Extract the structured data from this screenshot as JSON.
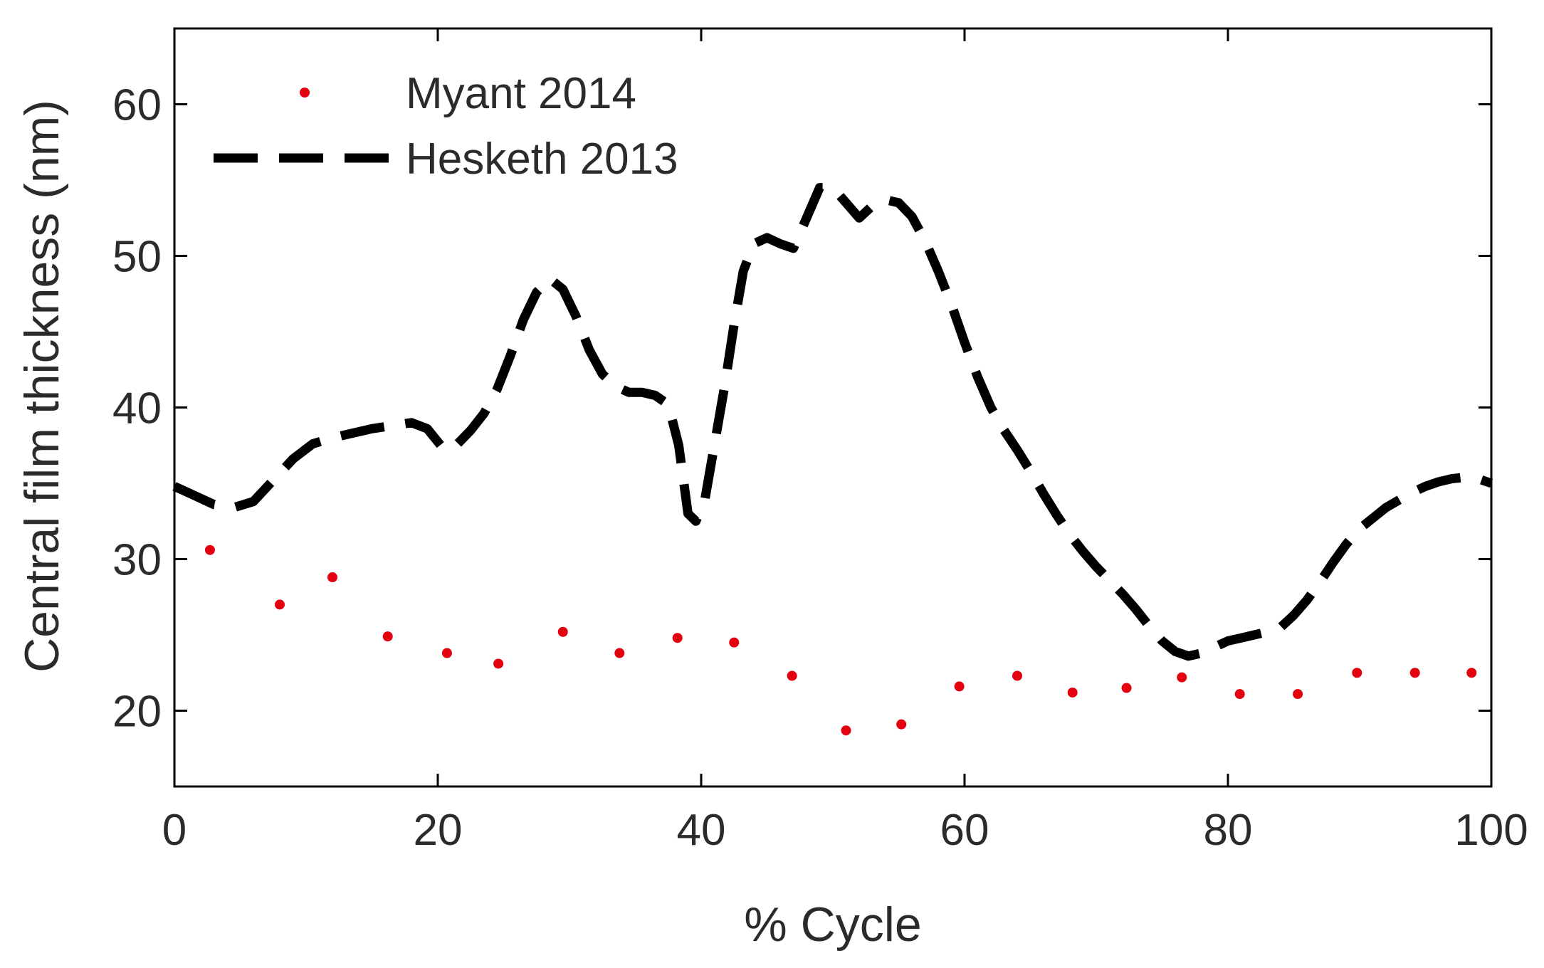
{
  "chart_data": {
    "type": "line",
    "title": "",
    "xlabel": "% Cycle",
    "ylabel": "Central film thickness (nm)",
    "xlim": [
      0,
      100
    ],
    "ylim": [
      15,
      65
    ],
    "xticks": [
      0,
      20,
      40,
      60,
      80,
      100
    ],
    "yticks": [
      20,
      30,
      40,
      50,
      60
    ],
    "xtick_labels": [
      "0",
      "20",
      "40",
      "60",
      "80",
      "100"
    ],
    "ytick_labels": [
      "20",
      "30",
      "40",
      "50",
      "60"
    ],
    "grid": false,
    "legend_position": "top-left",
    "series": [
      {
        "name": "Myant 2014",
        "style": "dots",
        "color": "#e3000f",
        "x": [
          2.7,
          8,
          12,
          16.2,
          20.7,
          24.6,
          29.5,
          33.8,
          38.2,
          42.5,
          46.9,
          51,
          55.2,
          59.6,
          64,
          68.2,
          72.3,
          76.5,
          80.9,
          85.3,
          89.8,
          94.2,
          98.5
        ],
        "y": [
          30.6,
          27.0,
          28.8,
          24.9,
          23.8,
          23.1,
          25.2,
          23.8,
          24.8,
          24.5,
          22.3,
          18.7,
          19.1,
          21.6,
          22.3,
          21.2,
          21.5,
          22.2,
          21.1,
          21.1,
          22.5,
          22.5,
          22.5
        ]
      },
      {
        "name": "Hesketh 2013",
        "style": "dashed",
        "color": "#000000",
        "x": [
          0,
          1.5,
          3,
          4.5,
          6,
          7.5,
          9,
          10.5,
          12,
          13.5,
          15,
          16.5,
          18,
          19.2,
          20.5,
          21.5,
          22.5,
          23.5,
          24.5,
          25.5,
          26.5,
          27.5,
          28.5,
          29.5,
          30.5,
          31.5,
          32.5,
          33.5,
          34.5,
          35.5,
          36.5,
          37.5,
          38.3,
          39,
          39.6,
          40.3,
          41,
          41.8,
          42.5,
          43.2,
          44,
          45,
          46,
          47,
          48,
          49,
          50,
          51,
          52,
          53,
          54,
          55,
          56,
          57,
          58,
          59,
          60,
          61,
          62,
          63,
          64,
          65,
          66,
          67,
          68,
          69,
          70,
          71,
          72,
          73,
          74,
          75,
          76,
          77,
          78,
          79,
          80,
          81,
          82,
          83,
          84,
          85,
          86,
          87,
          88,
          89,
          90,
          91,
          92,
          93,
          94,
          95,
          96,
          97,
          98,
          99,
          100
        ],
        "y": [
          34.8,
          34.2,
          33.6,
          33.4,
          33.8,
          35.2,
          36.6,
          37.6,
          38.0,
          38.3,
          38.6,
          38.8,
          39.0,
          38.6,
          37.2,
          37.6,
          38.5,
          39.6,
          41.2,
          43.4,
          45.8,
          47.6,
          48.5,
          47.8,
          46.0,
          43.8,
          42.2,
          41.4,
          41.0,
          41.0,
          40.8,
          40.2,
          37.5,
          33.0,
          32.5,
          34.0,
          37.5,
          41.5,
          45.5,
          49.0,
          50.8,
          51.2,
          50.8,
          50.5,
          52.5,
          54.5,
          54.5,
          53.5,
          52.5,
          53.3,
          53.7,
          53.5,
          52.6,
          51.0,
          49.0,
          46.8,
          44.3,
          42.0,
          40.0,
          38.5,
          37.2,
          35.8,
          34.3,
          32.9,
          31.6,
          30.5,
          29.5,
          28.6,
          27.7,
          26.7,
          25.6,
          24.6,
          23.9,
          23.6,
          23.8,
          24.2,
          24.6,
          24.8,
          25.0,
          25.2,
          25.5,
          26.3,
          27.3,
          28.5,
          29.8,
          31.0,
          32.0,
          32.7,
          33.4,
          33.9,
          34.4,
          34.8,
          35.1,
          35.3,
          35.4,
          35.3,
          35.0
        ]
      }
    ]
  }
}
